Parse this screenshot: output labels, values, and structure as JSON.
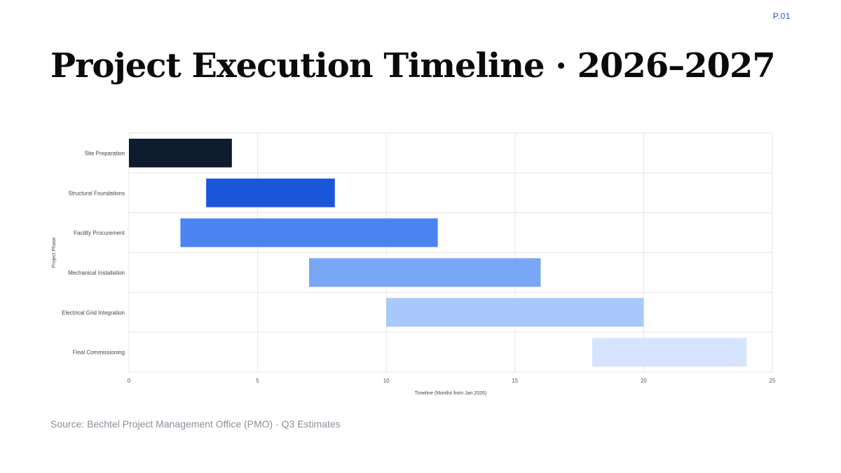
{
  "page": {
    "number": "P.01"
  },
  "title": "Project Execution Timeline · 2026–2027",
  "source": "Source: Bechtel Project Management Office (PMO) · Q3 Estimates",
  "chart_data": {
    "type": "bar",
    "orientation": "horizontal-gantt",
    "title": "",
    "xlabel": "Timeline (Months from Jan 2026)",
    "ylabel": "Project Phase",
    "xlim": [
      0,
      25
    ],
    "x_ticks": [
      0,
      5,
      10,
      15,
      20,
      25
    ],
    "grid": true,
    "legend": "none",
    "categories": [
      "Site Preparation",
      "Structural Foundations",
      "Facility Procurement",
      "Mechanical Installation",
      "Electrical Grid Integration",
      "Final Commissioning"
    ],
    "series": [
      {
        "tasks": [
          {
            "label": "Site Preparation",
            "start": 0,
            "end": 4,
            "color": "#0f1c2e"
          },
          {
            "label": "Structural Foundations",
            "start": 3,
            "end": 8,
            "color": "#1a56db"
          },
          {
            "label": "Facility Procurement",
            "start": 2,
            "end": 12,
            "color": "#4a84f0"
          },
          {
            "label": "Mechanical Installation",
            "start": 7,
            "end": 16,
            "color": "#79a7f6"
          },
          {
            "label": "Electrical Grid Integration",
            "start": 10,
            "end": 20,
            "color": "#a9c8fb"
          },
          {
            "label": "Final Commissioning",
            "start": 18,
            "end": 24,
            "color": "#d6e5fd"
          }
        ]
      }
    ]
  }
}
